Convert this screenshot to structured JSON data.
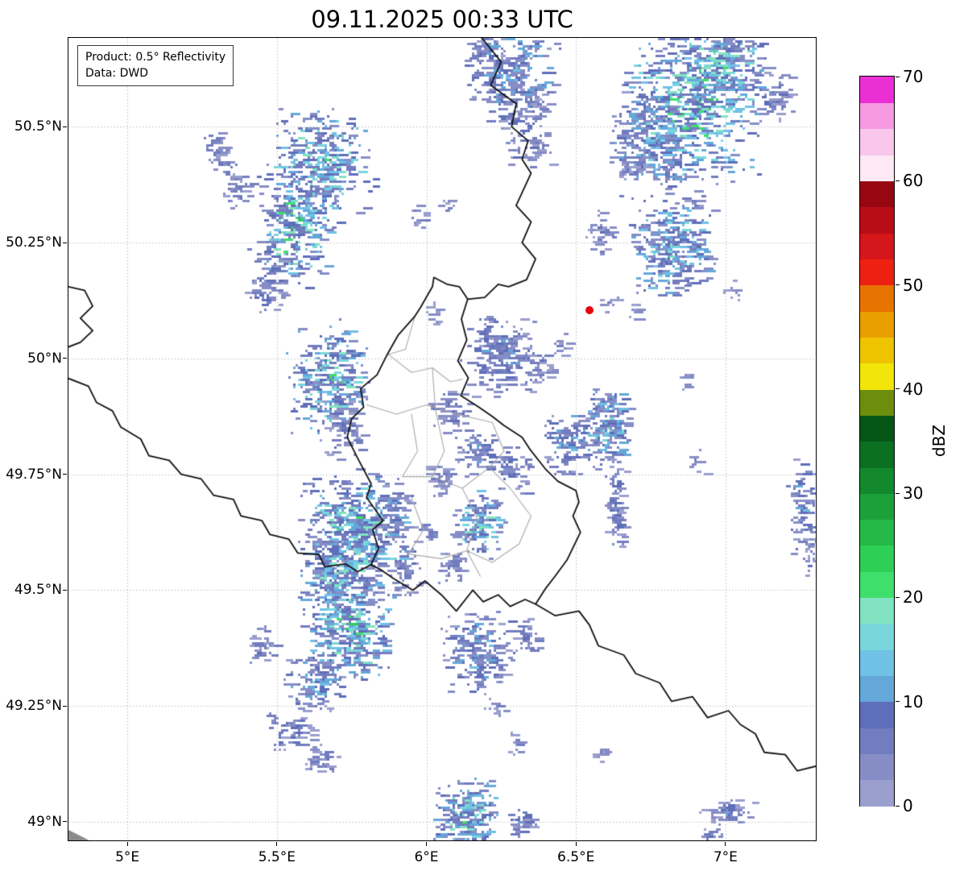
{
  "title": "09.11.2025 00:33 UTC",
  "annotation": {
    "line1": "Product: 0.5° Reflectivity",
    "line2": "Data: DWD"
  },
  "axes": {
    "x_ticks": [
      {
        "value": 5.0,
        "label": "5°E"
      },
      {
        "value": 5.5,
        "label": "5.5°E"
      },
      {
        "value": 6.0,
        "label": "6°E"
      },
      {
        "value": 6.5,
        "label": "6.5°E"
      },
      {
        "value": 7.0,
        "label": "7°E"
      }
    ],
    "y_ticks": [
      {
        "value": 50.5,
        "label": "50.5°N"
      },
      {
        "value": 50.25,
        "label": "50.25°N"
      },
      {
        "value": 50.0,
        "label": "50°N"
      },
      {
        "value": 49.75,
        "label": "49.75°N"
      },
      {
        "value": 49.5,
        "label": "49.5°N"
      },
      {
        "value": 49.25,
        "label": "49.25°N"
      },
      {
        "value": 49.0,
        "label": "49°N"
      }
    ]
  },
  "colorbar": {
    "label": "dBZ",
    "vmin": 0,
    "vmax": 70,
    "step": 2.5,
    "ticks": [
      0,
      10,
      20,
      30,
      40,
      50,
      60,
      70
    ],
    "colors": [
      "#9a9fce",
      "#868dc6",
      "#727dbf",
      "#5f6eb9",
      "#64a8da",
      "#70c1e6",
      "#79d7dc",
      "#81e3c1",
      "#3fdf6c",
      "#2ecf55",
      "#25b947",
      "#1ca13a",
      "#13882d",
      "#0b7022",
      "#055517",
      "#6c8e0c",
      "#f2e50a",
      "#eec400",
      "#eb9e00",
      "#e77300",
      "#ee2011",
      "#d5161a",
      "#b80d17",
      "#970711",
      "#fce9f5",
      "#f9c6ec",
      "#f59ae0",
      "#ea2fd4"
    ]
  },
  "chart_data": {
    "type": "heatmap",
    "title": "09.11.2025 00:33 UTC",
    "ylabel": "dBZ",
    "grid": true,
    "extent": {
      "lon_min": 4.803,
      "lon_max": 7.302,
      "lat_min": 48.96,
      "lat_max": 50.692
    },
    "marker": {
      "lon": 6.545,
      "lat": 50.105,
      "color": "#e8000b"
    },
    "corner_mark": {
      "color": "#8a8a8a"
    },
    "echo_clusters_fields": [
      "lon",
      "lat",
      "rx_deg",
      "ry_deg",
      "count",
      "max_dbz"
    ],
    "echo_clusters": [
      [
        6.28,
        50.62,
        0.09,
        0.06,
        260,
        16
      ],
      [
        6.33,
        50.51,
        0.05,
        0.06,
        120,
        12
      ],
      [
        6.2,
        50.67,
        0.04,
        0.03,
        60,
        12
      ],
      [
        6.88,
        50.56,
        0.13,
        0.1,
        650,
        26
      ],
      [
        6.75,
        50.47,
        0.08,
        0.07,
        260,
        18
      ],
      [
        6.98,
        50.65,
        0.08,
        0.05,
        200,
        24
      ],
      [
        7.15,
        50.57,
        0.04,
        0.035,
        70,
        12
      ],
      [
        6.68,
        50.42,
        0.025,
        0.02,
        30,
        10
      ],
      [
        6.88,
        50.34,
        0.015,
        0.015,
        10,
        8
      ],
      [
        6.82,
        50.24,
        0.08,
        0.06,
        320,
        22
      ],
      [
        6.58,
        50.27,
        0.03,
        0.03,
        40,
        10
      ],
      [
        7.02,
        50.15,
        0.015,
        0.015,
        10,
        8
      ],
      [
        6.6,
        50.12,
        0.02,
        0.012,
        12,
        8
      ],
      [
        6.7,
        50.1,
        0.015,
        0.012,
        10,
        8
      ],
      [
        6.87,
        49.96,
        0.015,
        0.015,
        10,
        8
      ],
      [
        5.64,
        50.42,
        0.1,
        0.07,
        380,
        24
      ],
      [
        5.55,
        50.28,
        0.07,
        0.07,
        280,
        26
      ],
      [
        5.36,
        50.37,
        0.03,
        0.03,
        45,
        12
      ],
      [
        5.46,
        50.17,
        0.045,
        0.04,
        80,
        14
      ],
      [
        5.32,
        50.43,
        0.02,
        0.02,
        20,
        10
      ],
      [
        5.29,
        50.46,
        0.025,
        0.02,
        30,
        10
      ],
      [
        5.97,
        50.31,
        0.02,
        0.015,
        15,
        8
      ],
      [
        6.06,
        50.33,
        0.015,
        0.012,
        10,
        8
      ],
      [
        5.67,
        49.96,
        0.08,
        0.07,
        320,
        24
      ],
      [
        5.72,
        49.86,
        0.04,
        0.05,
        80,
        12
      ],
      [
        6.24,
        50.01,
        0.07,
        0.05,
        220,
        14
      ],
      [
        6.37,
        49.99,
        0.03,
        0.025,
        40,
        10
      ],
      [
        6.45,
        50.03,
        0.02,
        0.015,
        15,
        8
      ],
      [
        6.02,
        50.1,
        0.02,
        0.015,
        15,
        8
      ],
      [
        6.6,
        49.85,
        0.05,
        0.05,
        200,
        20
      ],
      [
        6.48,
        49.82,
        0.05,
        0.04,
        140,
        16
      ],
      [
        6.63,
        49.69,
        0.02,
        0.06,
        90,
        12
      ],
      [
        6.9,
        49.78,
        0.015,
        0.015,
        10,
        8
      ],
      [
        7.25,
        49.68,
        0.025,
        0.06,
        80,
        14
      ],
      [
        7.28,
        49.58,
        0.015,
        0.03,
        25,
        10
      ],
      [
        6.08,
        49.89,
        0.04,
        0.03,
        70,
        13
      ],
      [
        6.16,
        49.8,
        0.04,
        0.03,
        70,
        13
      ],
      [
        6.04,
        49.74,
        0.03,
        0.02,
        40,
        10
      ],
      [
        6.28,
        49.76,
        0.04,
        0.03,
        60,
        12
      ],
      [
        6.17,
        49.64,
        0.05,
        0.04,
        140,
        24
      ],
      [
        6.08,
        49.55,
        0.03,
        0.025,
        40,
        10
      ],
      [
        5.99,
        49.62,
        0.02,
        0.02,
        20,
        10
      ],
      [
        5.75,
        49.62,
        0.1,
        0.08,
        480,
        24
      ],
      [
        5.7,
        49.52,
        0.08,
        0.06,
        300,
        22
      ],
      [
        5.74,
        49.41,
        0.08,
        0.06,
        320,
        26
      ],
      [
        5.88,
        49.66,
        0.04,
        0.04,
        80,
        14
      ],
      [
        5.92,
        49.55,
        0.03,
        0.04,
        60,
        12
      ],
      [
        5.62,
        49.3,
        0.06,
        0.035,
        120,
        16
      ],
      [
        5.53,
        49.2,
        0.05,
        0.025,
        70,
        12
      ],
      [
        5.64,
        49.14,
        0.035,
        0.02,
        40,
        10
      ],
      [
        5.45,
        49.38,
        0.03,
        0.025,
        35,
        10
      ],
      [
        6.17,
        49.37,
        0.07,
        0.05,
        200,
        16
      ],
      [
        6.33,
        49.4,
        0.03,
        0.025,
        35,
        10
      ],
      [
        6.22,
        49.25,
        0.02,
        0.015,
        15,
        8
      ],
      [
        6.3,
        49.17,
        0.015,
        0.015,
        12,
        8
      ],
      [
        6.57,
        49.15,
        0.015,
        0.012,
        10,
        8
      ],
      [
        6.13,
        49.01,
        0.06,
        0.05,
        240,
        24
      ],
      [
        6.31,
        49.0,
        0.03,
        0.02,
        35,
        12
      ],
      [
        7.0,
        49.02,
        0.05,
        0.02,
        60,
        12
      ],
      [
        6.95,
        48.97,
        0.03,
        0.015,
        25,
        10
      ]
    ],
    "borders": {
      "country": [
        [
          [
            6.185,
            50.692
          ],
          [
            6.25,
            50.64
          ],
          [
            6.215,
            50.59
          ],
          [
            6.3,
            50.55
          ],
          [
            6.285,
            50.5
          ],
          [
            6.34,
            50.47
          ],
          [
            6.32,
            50.43
          ],
          [
            6.35,
            50.4
          ],
          [
            6.3,
            50.33
          ],
          [
            6.35,
            50.295
          ],
          [
            6.32,
            50.25
          ],
          [
            6.365,
            50.215
          ],
          [
            6.335,
            50.17
          ],
          [
            6.275,
            50.155
          ],
          [
            6.24,
            50.16
          ],
          [
            6.195,
            50.132
          ],
          [
            6.138,
            50.128
          ]
        ],
        [
          [
            6.138,
            50.128
          ],
          [
            6.117,
            50.085
          ],
          [
            6.135,
            50.04
          ],
          [
            6.105,
            49.995
          ],
          [
            6.14,
            49.958
          ],
          [
            6.115,
            49.92
          ],
          [
            6.175,
            49.895
          ],
          [
            6.22,
            49.875
          ],
          [
            6.26,
            49.855
          ],
          [
            6.32,
            49.83
          ],
          [
            6.345,
            49.805
          ],
          [
            6.4,
            49.76
          ],
          [
            6.44,
            49.735
          ],
          [
            6.5,
            49.715
          ],
          [
            6.51,
            49.69
          ],
          [
            6.49,
            49.66
          ],
          [
            6.515,
            49.625
          ],
          [
            6.47,
            49.565
          ],
          [
            6.43,
            49.53
          ],
          [
            6.4,
            49.505
          ],
          [
            6.365,
            49.47
          ],
          [
            6.33,
            49.48
          ],
          [
            6.28,
            49.465
          ],
          [
            6.24,
            49.49
          ],
          [
            6.19,
            49.475
          ],
          [
            6.155,
            49.5
          ],
          [
            6.1,
            49.455
          ],
          [
            6.05,
            49.49
          ],
          [
            5.995,
            49.52
          ],
          [
            5.955,
            49.5
          ],
          [
            5.89,
            49.525
          ],
          [
            5.845,
            49.545
          ],
          [
            5.815,
            49.555
          ],
          [
            5.84,
            49.59
          ],
          [
            5.82,
            49.63
          ],
          [
            5.855,
            49.65
          ],
          [
            5.8,
            49.7
          ],
          [
            5.815,
            49.73
          ],
          [
            5.77,
            49.785
          ],
          [
            5.735,
            49.83
          ],
          [
            5.75,
            49.87
          ],
          [
            5.79,
            49.895
          ],
          [
            5.78,
            49.935
          ],
          [
            5.835,
            49.965
          ],
          [
            5.87,
            50.01
          ],
          [
            5.905,
            50.05
          ],
          [
            5.96,
            50.09
          ],
          [
            5.98,
            50.11
          ],
          [
            6.02,
            50.155
          ],
          [
            6.025,
            50.175
          ],
          [
            6.07,
            50.16
          ],
          [
            6.11,
            50.155
          ],
          [
            6.138,
            50.128
          ]
        ],
        [
          [
            4.803,
            50.155
          ],
          [
            4.857,
            50.147
          ],
          [
            4.884,
            50.113
          ],
          [
            4.843,
            50.087
          ],
          [
            4.884,
            50.06
          ],
          [
            4.843,
            50.035
          ],
          [
            4.803,
            50.025
          ]
        ],
        [
          [
            4.803,
            49.957
          ],
          [
            4.87,
            49.94
          ],
          [
            4.897,
            49.905
          ],
          [
            4.95,
            49.887
          ],
          [
            4.978,
            49.852
          ],
          [
            5.045,
            49.826
          ],
          [
            5.072,
            49.79
          ],
          [
            5.14,
            49.78
          ],
          [
            5.18,
            49.75
          ],
          [
            5.247,
            49.74
          ],
          [
            5.288,
            49.705
          ],
          [
            5.355,
            49.696
          ],
          [
            5.38,
            49.66
          ],
          [
            5.45,
            49.65
          ],
          [
            5.477,
            49.62
          ],
          [
            5.54,
            49.61
          ],
          [
            5.57,
            49.58
          ],
          [
            5.64,
            49.577
          ],
          [
            5.66,
            49.55
          ],
          [
            5.73,
            49.557
          ],
          [
            5.77,
            49.54
          ],
          [
            5.815,
            49.555
          ]
        ],
        [
          [
            6.365,
            49.47
          ],
          [
            6.43,
            49.445
          ],
          [
            6.51,
            49.455
          ],
          [
            6.545,
            49.425
          ],
          [
            6.575,
            49.38
          ],
          [
            6.66,
            49.36
          ],
          [
            6.7,
            49.32
          ],
          [
            6.78,
            49.3
          ],
          [
            6.82,
            49.26
          ],
          [
            6.89,
            49.27
          ],
          [
            6.94,
            49.225
          ],
          [
            7.01,
            49.24
          ],
          [
            7.05,
            49.21
          ],
          [
            7.1,
            49.19
          ],
          [
            7.13,
            49.15
          ],
          [
            7.2,
            49.145
          ],
          [
            7.24,
            49.11
          ],
          [
            7.302,
            49.12
          ]
        ]
      ],
      "region": [
        [
          [
            5.87,
            50.01
          ],
          [
            5.95,
            49.97
          ],
          [
            6.02,
            49.98
          ],
          [
            6.08,
            49.95
          ],
          [
            6.12,
            49.955
          ]
        ],
        [
          [
            5.96,
            50.088
          ],
          [
            5.93,
            50.02
          ],
          [
            5.87,
            50.008
          ]
        ],
        [
          [
            5.8,
            49.9
          ],
          [
            5.9,
            49.88
          ],
          [
            6.0,
            49.9
          ],
          [
            6.1,
            49.88
          ],
          [
            6.22,
            49.862
          ]
        ],
        [
          [
            5.95,
            49.88
          ],
          [
            5.97,
            49.8
          ],
          [
            5.92,
            49.745
          ]
        ],
        [
          [
            6.03,
            49.89
          ],
          [
            6.06,
            49.8
          ],
          [
            6.02,
            49.745
          ]
        ],
        [
          [
            6.02,
            49.98
          ],
          [
            6.03,
            49.89
          ]
        ],
        [
          [
            6.22,
            49.862
          ],
          [
            6.26,
            49.8
          ],
          [
            6.21,
            49.765
          ],
          [
            6.28,
            49.72
          ]
        ],
        [
          [
            5.92,
            49.745
          ],
          [
            6.02,
            49.745
          ],
          [
            6.12,
            49.72
          ],
          [
            6.21,
            49.765
          ]
        ],
        [
          [
            6.12,
            49.72
          ],
          [
            6.17,
            49.655
          ],
          [
            6.135,
            49.585
          ],
          [
            6.18,
            49.53
          ]
        ],
        [
          [
            5.95,
            49.7
          ],
          [
            5.99,
            49.63
          ],
          [
            5.94,
            49.578
          ]
        ],
        [
          [
            5.94,
            49.578
          ],
          [
            6.05,
            49.568
          ],
          [
            6.135,
            49.585
          ]
        ],
        [
          [
            6.28,
            49.72
          ],
          [
            6.35,
            49.66
          ],
          [
            6.31,
            49.6
          ]
        ],
        [
          [
            6.135,
            49.585
          ],
          [
            6.22,
            49.56
          ],
          [
            6.31,
            49.6
          ]
        ]
      ]
    }
  }
}
